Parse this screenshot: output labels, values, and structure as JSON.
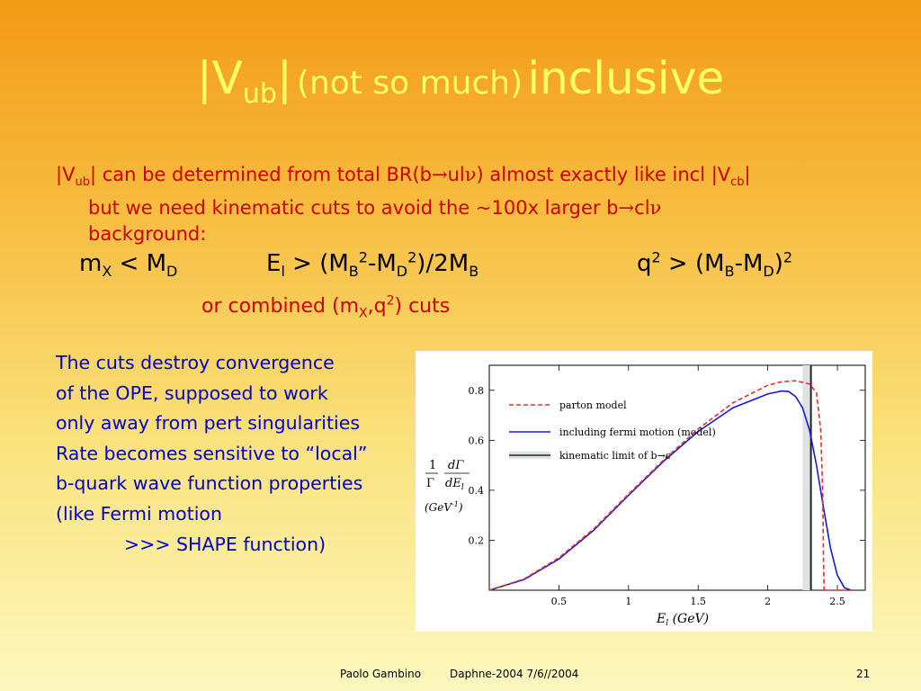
{
  "slide": {
    "title": {
      "v": "|V",
      "sub": "ub",
      "bar": "|",
      "paren": "(not so much)",
      "word": "inclusive"
    },
    "bullet": {
      "p1": "|V",
      "p1sub": "ub",
      "p2": "| can be determined from total BR(b",
      "arrow1": "→",
      "p3": "ul",
      "nu1": "ν",
      "p4": ") almost exactly like incl |V",
      "p4sub": "cb",
      "p5": "|",
      "line2a": "but we need kinematic cuts to avoid the ~100x larger b",
      "arrow2": "→",
      "line2b": "cl",
      "nu2": "ν",
      "line3": "background:"
    },
    "cut1": {
      "a": "m",
      "asub": "X",
      "b": " < M",
      "bsub": "D"
    },
    "cut2": {
      "a": "E",
      "asub": "l",
      "b": " > (M",
      "bsub": "B",
      "bsup": "2",
      "c": "-M",
      "csub": "D",
      "csup": "2",
      "d": ")/2M",
      "dsub": "B"
    },
    "cut3": {
      "a": "q",
      "asup": "2",
      "b": " > (M",
      "bsub": "B",
      "c": "-M",
      "csub": "D",
      "d": ")",
      "dsup": "2"
    },
    "combined": {
      "a": "or combined (m",
      "asub": "X",
      "b": ",q",
      "bsup": "2",
      "c": ") cuts"
    },
    "blue_lines": [
      "The cuts destroy convergence",
      "of the OPE, supposed to work",
      "only away from pert singularities",
      "",
      "Rate becomes sensitive to “local”",
      "b-quark wave function properties",
      "(like Fermi motion",
      ">>> SHAPE function)"
    ],
    "footer": {
      "author": "Paolo Gambino",
      "event": "Daphne-2004  7/6//2004",
      "page": "21"
    }
  },
  "chart_data": {
    "type": "line",
    "xlabel": "E_l (GeV)",
    "ylabel": "(1/Γ) dΓ/dE_l (GeV^-1)",
    "xlim": [
      0,
      2.7
    ],
    "ylim": [
      0,
      0.9
    ],
    "xticks": [
      "0.5",
      "1",
      "1.5",
      "2",
      "2.5"
    ],
    "yticks": [
      "0.2",
      "0.4",
      "0.6",
      "0.8"
    ],
    "legend": {
      "placement": "top-left",
      "entries": [
        "parton model",
        "including fermi motion (model)",
        "kinematic limit of b→c"
      ]
    },
    "kinematic_limit_x": 2.31,
    "band": [
      2.25,
      2.31
    ],
    "series": [
      {
        "name": "parton model",
        "color": "#e03030",
        "dashed": true,
        "x": [
          0,
          0.25,
          0.5,
          0.75,
          1.0,
          1.25,
          1.5,
          1.75,
          2.0,
          2.1,
          2.2,
          2.3,
          2.35,
          2.38,
          2.395,
          2.4,
          2.405,
          2.45,
          2.5,
          2.6
        ],
        "y": [
          0,
          0.045,
          0.13,
          0.245,
          0.385,
          0.52,
          0.645,
          0.75,
          0.82,
          0.834,
          0.838,
          0.825,
          0.79,
          0.64,
          0.38,
          0.12,
          0.0,
          0.0,
          0.0,
          0.0
        ]
      },
      {
        "name": "including fermi motion (model)",
        "color": "#1a1ad8",
        "dashed": false,
        "x": [
          0,
          0.25,
          0.5,
          0.75,
          1.0,
          1.25,
          1.5,
          1.75,
          2.0,
          2.1,
          2.15,
          2.2,
          2.25,
          2.3,
          2.35,
          2.4,
          2.45,
          2.5,
          2.55,
          2.6
        ],
        "y": [
          0,
          0.043,
          0.125,
          0.24,
          0.38,
          0.515,
          0.635,
          0.73,
          0.785,
          0.797,
          0.795,
          0.775,
          0.73,
          0.64,
          0.5,
          0.33,
          0.17,
          0.06,
          0.01,
          0.0
        ]
      }
    ]
  }
}
